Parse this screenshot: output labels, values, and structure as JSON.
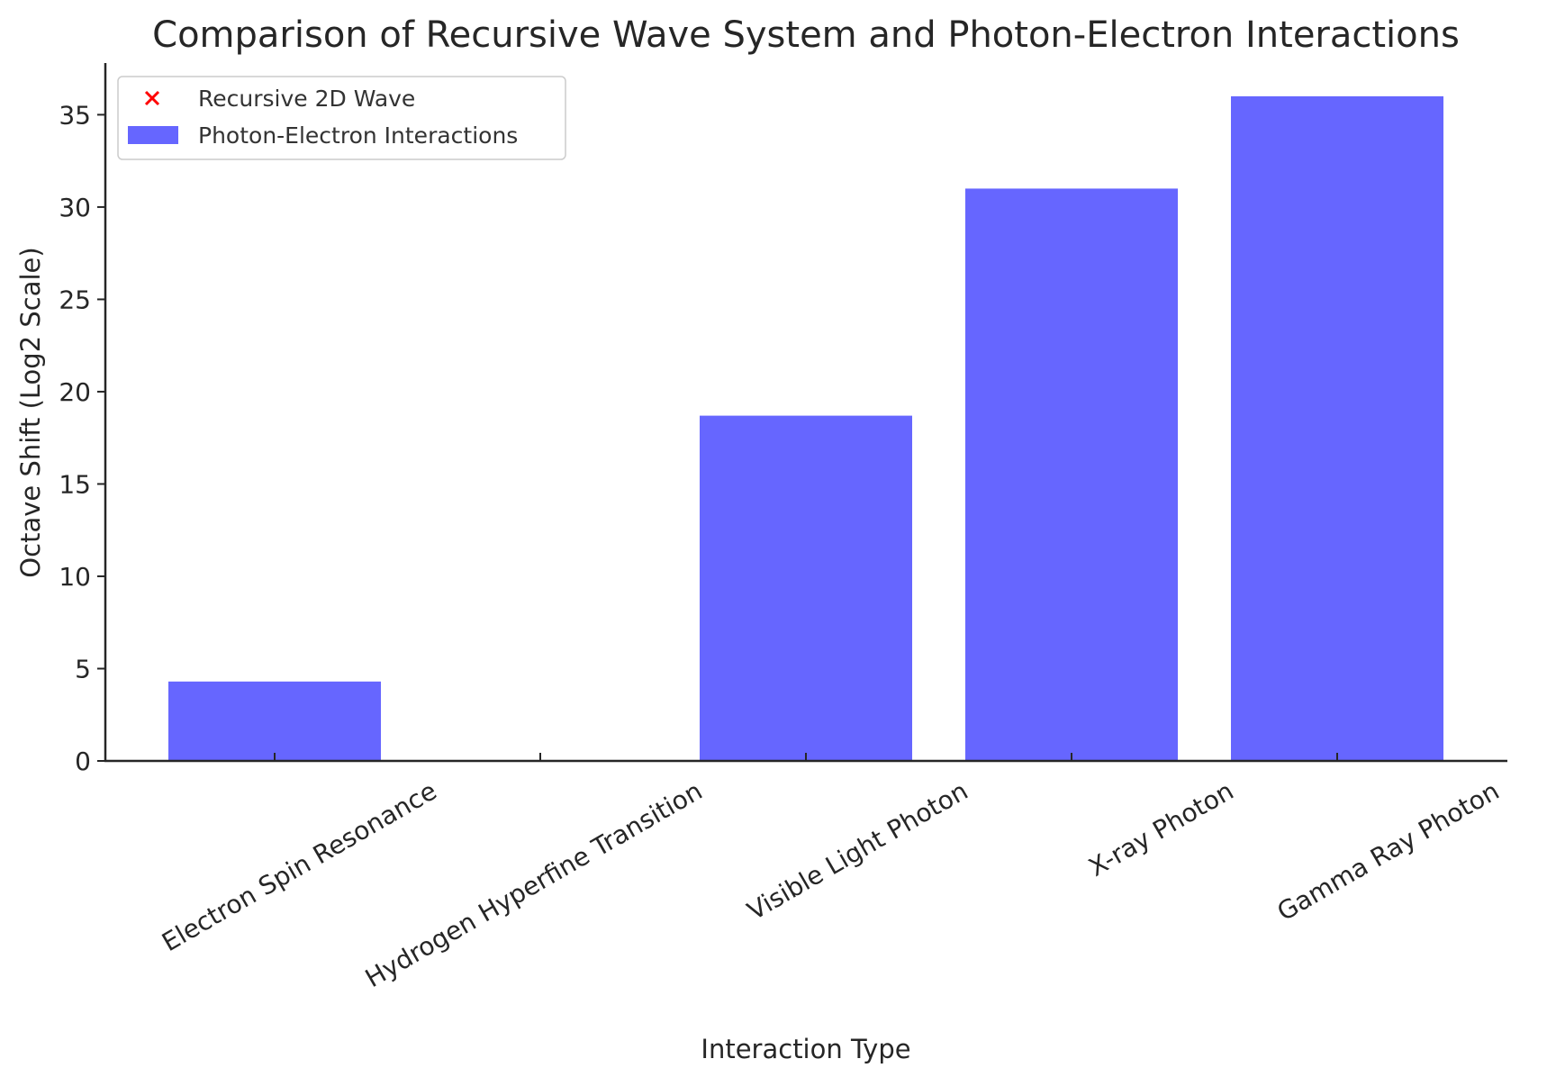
{
  "chart_data": {
    "type": "bar",
    "title": "Comparison of Recursive Wave System and Photon-Electron Interactions",
    "xlabel": "Interaction Type",
    "ylabel": "Octave Shift (Log2 Scale)",
    "categories": [
      "Electron Spin Resonance",
      "Hydrogen Hyperfine Transition",
      "Visible Light Photon",
      "X-ray Photon",
      "Gamma Ray Photon"
    ],
    "series": [
      {
        "name": "Photon-Electron Interactions",
        "kind": "bar",
        "color": "#6666ff",
        "values": [
          4.3,
          0,
          18.7,
          31.0,
          36.0
        ]
      },
      {
        "name": "Recursive 2D Wave",
        "kind": "scatter",
        "marker": "x",
        "color": "#ff0000",
        "values": []
      }
    ],
    "ylim": [
      0,
      37.8
    ],
    "yticks": [
      0,
      5,
      10,
      15,
      20,
      25,
      30,
      35
    ],
    "grid": false,
    "legend_position": "top-left"
  }
}
